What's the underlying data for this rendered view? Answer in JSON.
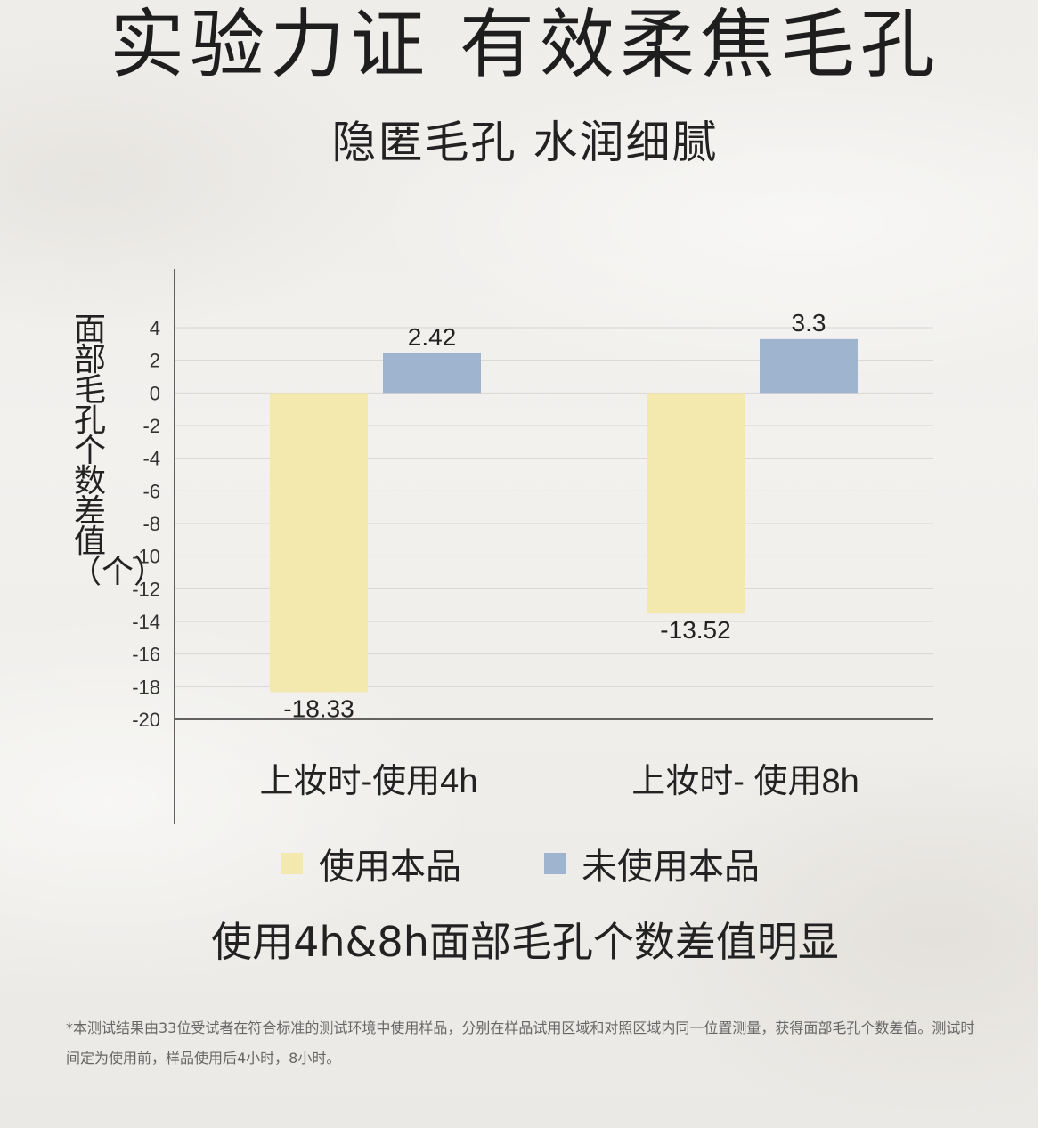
{
  "header": {
    "title": "实验力证 有效柔焦毛孔",
    "subtitle": "隐匿毛孔 水润细腻"
  },
  "chart_data": {
    "type": "bar",
    "categories": [
      "上妆时-使用4h",
      "上妆时- 使用8h"
    ],
    "series": [
      {
        "name": "使用本品",
        "color": "#f3e8ae",
        "values": [
          -18.33,
          -13.52
        ],
        "labels": [
          "-18.33",
          "-13.52"
        ]
      },
      {
        "name": "未使用本品",
        "color": "#9fb5cf",
        "values": [
          2.42,
          3.3
        ],
        "labels": [
          "2.42",
          "3.3"
        ]
      }
    ],
    "ylabel": "面部毛孔个数差值（个）",
    "ylim": [
      -20,
      4
    ],
    "yticks": [
      4,
      2,
      0,
      -2,
      -4,
      -6,
      -8,
      -10,
      -12,
      -14,
      -16,
      -18,
      -20
    ],
    "grid": true,
    "legend_position": "bottom"
  },
  "caption": "使用4h&8h面部毛孔个数差值明显",
  "footnote": "*本测试结果由33位受试者在符合标准的测试环境中使用样品，分别在样品试用区域和对照区域内同一位置测量，获得面部毛孔个数差值。测试时间定为使用前，样品使用后4小时，8小时。"
}
